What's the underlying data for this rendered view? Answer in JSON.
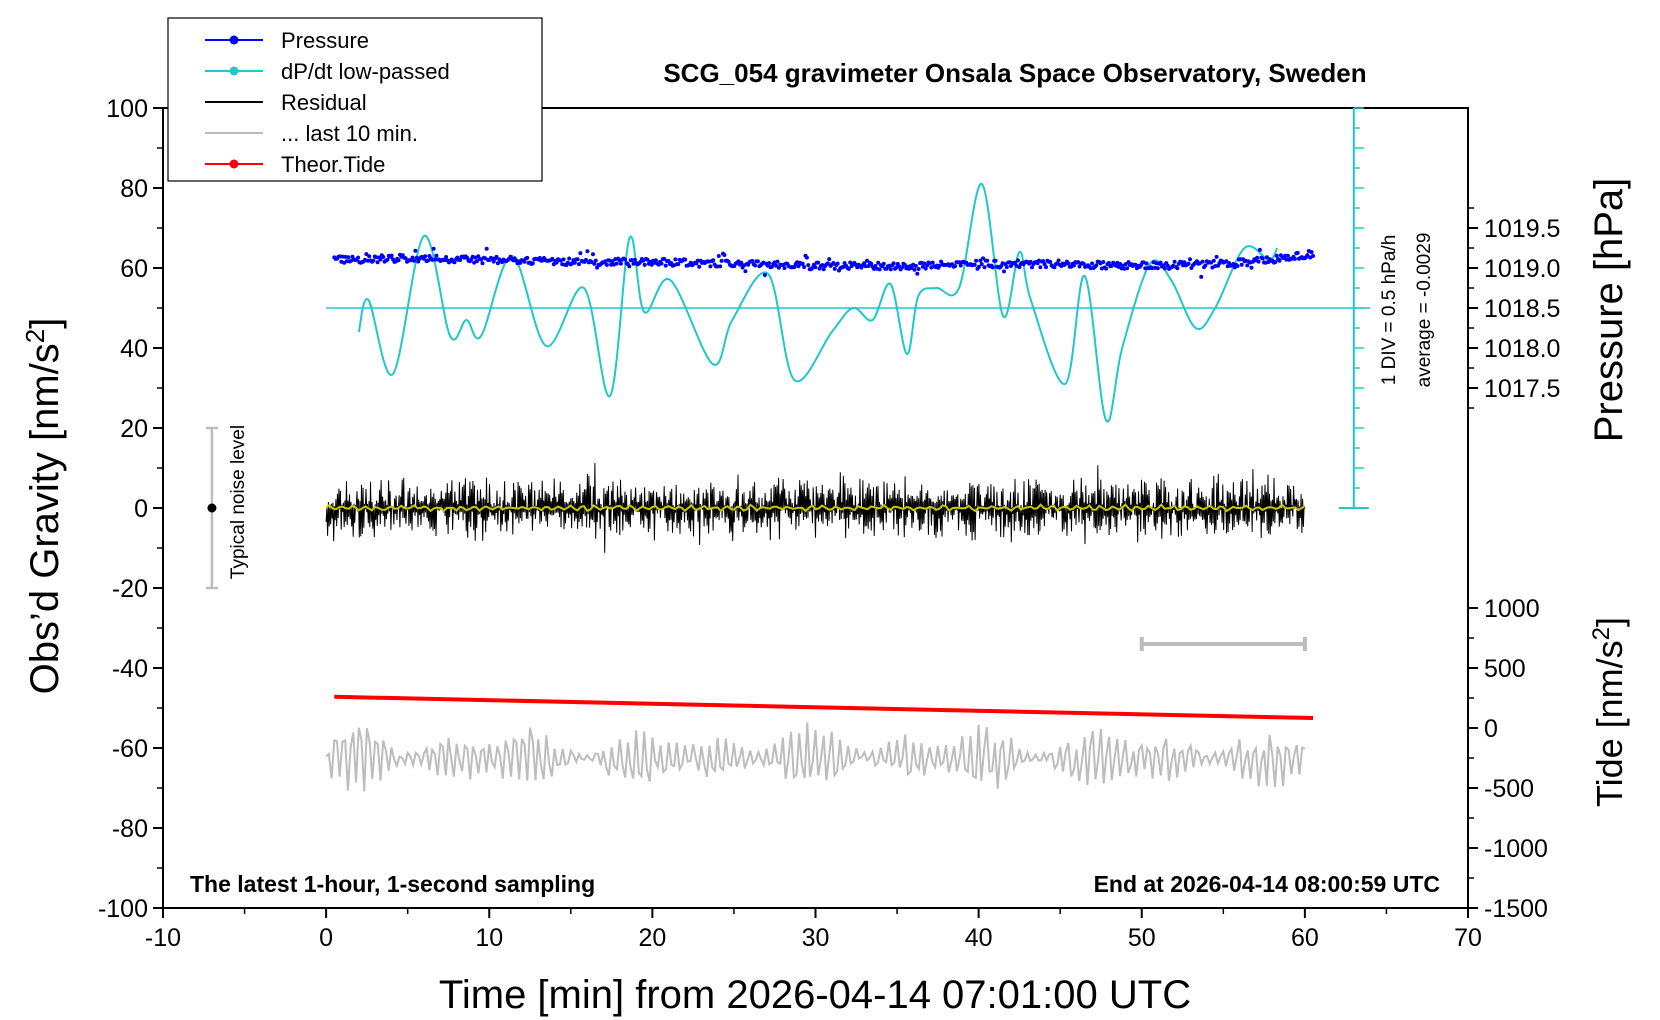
{
  "chart_data": {
    "type": "line",
    "title": "SCG_054 gravimeter Onsala Space Observatory, Sweden",
    "xlabel": "Time [min] from 2026-04-14 07:01:00 UTC",
    "ylabel_left": "Obs’d Gravity [nm/s²]",
    "ylabel_left_parts": [
      "Obs’d Gravity [nm/s",
      "2",
      "]"
    ],
    "ylabel_pressure": "Pressure [hPa]",
    "ylabel_tide_parts": [
      "Tide [nm/s",
      "2",
      "]"
    ],
    "xlim": [
      -10,
      70
    ],
    "ylim": [
      -100,
      100
    ],
    "x_ticks": [
      -10,
      0,
      10,
      20,
      30,
      40,
      50,
      60,
      70
    ],
    "y_ticks": [
      -100,
      -80,
      -60,
      -40,
      -20,
      0,
      20,
      40,
      60,
      80,
      100
    ],
    "pressure_axis": {
      "ticks": [
        1017.5,
        1018.0,
        1018.5,
        1019.0,
        1019.5
      ],
      "tick_labels": [
        "1017.5",
        "1018.0",
        "1018.5",
        "1019.0",
        "1019.5"
      ],
      "scale_nm_per_hPa": 20,
      "offset_hPa": 1018.5,
      "offset_gravity": 50
    },
    "tide_axis": {
      "ticks": [
        1000,
        500,
        0,
        -500,
        -1000,
        -1500
      ],
      "tick_labels": [
        "1000",
        "500",
        "0",
        "-500",
        "-1000",
        "-1500"
      ],
      "scale_nm_per_unit": 0.03,
      "offset_gravity": -55
    },
    "legend": {
      "placement": "top-left",
      "entries": [
        {
          "label": "Pressure",
          "color": "#0000ff",
          "marker": true
        },
        {
          "label": "dP/dt low-passed",
          "color": "#20c8c8",
          "marker": true
        },
        {
          "label": "Residual",
          "color": "#000000",
          "marker": false
        },
        {
          "label": "... last 10 min.",
          "color": "#bdbdbd",
          "marker": false
        },
        {
          "label": "Theor.Tide",
          "color": "#ff0000",
          "marker": true
        }
      ]
    },
    "colors": {
      "pressure": "#0000ff",
      "dpdt": "#20c8c8",
      "residual": "#000000",
      "residual_smooth": "#c8c800",
      "last10": "#bdbdbd",
      "tide": "#ff0000",
      "noise_bar": "#bdbdbd"
    },
    "series": [
      {
        "name": "Pressure",
        "unit": "nm/s2 on gravity axis",
        "x": [
          0.5,
          5,
          10,
          15,
          20,
          25,
          30,
          35,
          40,
          45,
          50,
          55,
          58,
          60.5
        ],
        "values": [
          62,
          62.5,
          62,
          61.5,
          61.5,
          61,
          60.5,
          60.5,
          61,
          61,
          60.5,
          61,
          62,
          63.5
        ]
      },
      {
        "name": "dP/dt low-passed",
        "unit": "nm/s2 on gravity axis",
        "x": [
          2,
          2.6,
          4.1,
          6,
          7.6,
          8.6,
          9.5,
          11.4,
          13.5,
          15.8,
          17.4,
          18.6,
          19.5,
          21.1,
          23.7,
          24.9,
          27.1,
          28.7,
          31,
          32.3,
          33.5,
          34.6,
          35.6,
          36.3,
          37.4,
          38.8,
          40.2,
          41.5,
          42.5,
          43.2,
          45.3,
          46.5,
          47.8,
          48.8,
          50.5,
          51.8,
          53.3,
          54.5,
          56.3,
          57.8,
          58.3
        ],
        "values": [
          44,
          52,
          33.5,
          68,
          43,
          47,
          43,
          63,
          40.5,
          55,
          28,
          67.5,
          49,
          57,
          36,
          47,
          58.5,
          32,
          44,
          50,
          47,
          56,
          38.5,
          53,
          55,
          55,
          81,
          48,
          64,
          52,
          31,
          58,
          22,
          40,
          61,
          57,
          45,
          50,
          65,
          62,
          65
        ]
      },
      {
        "name": "Residual",
        "note": "noisy 1-second residual centred on 0, amplitude about ±9 nm/s2, x from 0 to 60 min",
        "x_range": [
          0,
          60
        ],
        "mean": 0,
        "amplitude": 9
      },
      {
        "name": "... last 10 min.",
        "note": "last 10 minutes of residual, shown enlarged around -62 nm/s2",
        "x_range": [
          0,
          60
        ],
        "mean": -62.5,
        "amplitude": 10
      },
      {
        "name": "Theor.Tide",
        "x": [
          0.5,
          60.5
        ],
        "values": [
          -47.2,
          -52.5
        ]
      }
    ],
    "annotations": {
      "noise_label": "Typical noise level",
      "noise_bar": {
        "x": -7,
        "y_range": [
          -20,
          20
        ]
      },
      "dpdt_scale": "1 DIV = 0.5 hPa/h",
      "dpdt_average": "average = -0.0029",
      "dpdt_zero_level": 50,
      "last10_marker": {
        "x_range": [
          50,
          60
        ],
        "y": -34
      }
    },
    "footer_left": "The latest 1-hour, 1-second sampling",
    "footer_right": "End at 2026-04-14 08:00:59 UTC"
  }
}
